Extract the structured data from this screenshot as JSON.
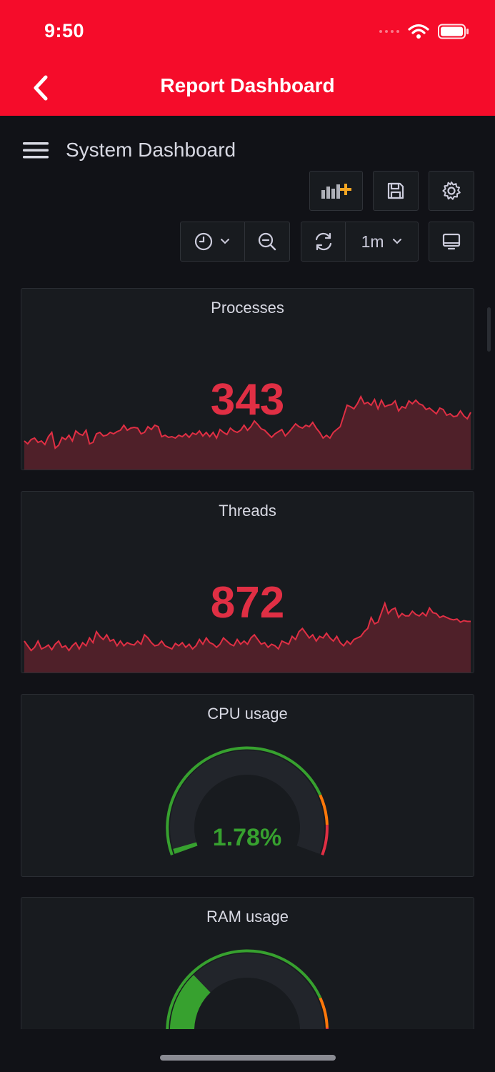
{
  "status_bar": {
    "time": "9:50",
    "signal_icon": "cellular-icon",
    "wifi_icon": "wifi-icon",
    "battery_icon": "battery-icon"
  },
  "nav_bar": {
    "title": "Report Dashboard",
    "back_icon": "chevron-left-icon",
    "background_color": "#f50c2a"
  },
  "dashboard": {
    "title": "System Dashboard",
    "menu_icon": "hamburger-menu-icon",
    "toolbar": {
      "add_panel_icon": "add-panel-icon",
      "save_icon": "save-icon",
      "settings_icon": "gear-icon",
      "time_picker_icon": "clock-icon",
      "zoom_out_icon": "zoom-out-icon",
      "refresh_icon": "refresh-icon",
      "refresh_interval": "1m",
      "tv_mode_icon": "monitor-icon"
    }
  },
  "panels": [
    {
      "title": "Processes",
      "value": "343",
      "value_color": "#e02f44",
      "sparkline": [
        40,
        36,
        42,
        44,
        38,
        40,
        35,
        46,
        52,
        30,
        34,
        45,
        42,
        48,
        40,
        54,
        50,
        48,
        55,
        36,
        38,
        50,
        52,
        47,
        48,
        52,
        50,
        53,
        55,
        62,
        55,
        58,
        59,
        58,
        50,
        52,
        60,
        56,
        62,
        60,
        46,
        48,
        45,
        46,
        44,
        48,
        46,
        50,
        45,
        51,
        49,
        54,
        47,
        52,
        46,
        52,
        44,
        56,
        52,
        49,
        58,
        54,
        52,
        55,
        62,
        55,
        60,
        68,
        63,
        57,
        55,
        50,
        45,
        50,
        53,
        56,
        47,
        52,
        58,
        64,
        60,
        58,
        62,
        60,
        66,
        58,
        52,
        44,
        48,
        44,
        52,
        56,
        60,
        75,
        90,
        88,
        85,
        92,
        102,
        92,
        94,
        90,
        98,
        85,
        97,
        88,
        90,
        91,
        96,
        82,
        88,
        86,
        96,
        92,
        97,
        92,
        90,
        84,
        86,
        82,
        78,
        86,
        84,
        76,
        78,
        74,
        75,
        82,
        75,
        71,
        80
      ],
      "sparkline_max": 110
    },
    {
      "title": "Threads",
      "value": "872",
      "value_color": "#e02f44",
      "sparkline": [
        40,
        34,
        28,
        32,
        40,
        30,
        32,
        35,
        29,
        36,
        40,
        32,
        34,
        28,
        34,
        38,
        30,
        38,
        34,
        44,
        38,
        52,
        46,
        42,
        48,
        40,
        42,
        34,
        40,
        34,
        38,
        36,
        35,
        40,
        36,
        48,
        44,
        38,
        34,
        35,
        40,
        34,
        32,
        30,
        37,
        34,
        38,
        32,
        36,
        30,
        34,
        42,
        36,
        44,
        38,
        36,
        32,
        36,
        44,
        40,
        36,
        34,
        42,
        36,
        40,
        36,
        44,
        48,
        42,
        36,
        38,
        32,
        36,
        34,
        30,
        40,
        38,
        36,
        46,
        42,
        52,
        56,
        50,
        44,
        48,
        40,
        46,
        44,
        50,
        44,
        40,
        46,
        38,
        34,
        40,
        36,
        42,
        44,
        46,
        52,
        56,
        70,
        62,
        64,
        76,
        88,
        75,
        80,
        82,
        70,
        75,
        72,
        72,
        78,
        74,
        72,
        76,
        72,
        82,
        76,
        75,
        70,
        72,
        70,
        68,
        67,
        68,
        64,
        66,
        65,
        65
      ],
      "sparkline_max": 100
    },
    {
      "title": "CPU usage",
      "value": "1.78%",
      "percent": 1.78,
      "value_color": "#37a12f"
    },
    {
      "title": "RAM usage",
      "value": "",
      "percent": 30,
      "value_color": "#37a12f"
    }
  ],
  "colors": {
    "accent_red": "#e02f44",
    "gauge_green": "#37a12f",
    "gauge_orange": "#ff780a",
    "panel_bg": "#181b1f",
    "page_bg": "#111217"
  },
  "home_indicator": "home-indicator"
}
